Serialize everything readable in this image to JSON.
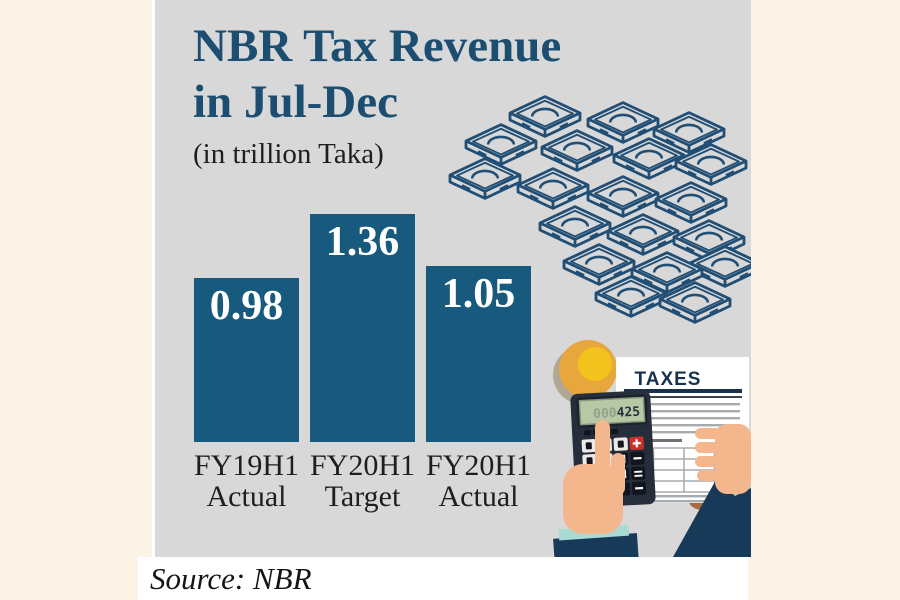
{
  "chart_data": {
    "type": "bar",
    "title": "NBR Tax Revenue in Jul-Dec",
    "title_lines": [
      "NBR Tax Revenue",
      "in Jul-Dec"
    ],
    "subtitle": "(in trillion Taka)",
    "unit": "trillion Taka",
    "categories": [
      "FY19H1 Actual",
      "FY20H1 Target",
      "FY20H1 Actual"
    ],
    "category_lines": [
      [
        "FY19H1",
        "Actual"
      ],
      [
        "FY20H1",
        "Target"
      ],
      [
        "FY20H1",
        "Actual"
      ]
    ],
    "values": [
      0.98,
      1.36,
      1.05
    ],
    "value_labels": [
      "0.98",
      "1.36",
      "1.05"
    ],
    "ylim": [
      0,
      1.45
    ],
    "grid": false,
    "legend": "none",
    "bar_color": "#175A7D",
    "value_label_position": "inside-top",
    "value_label_color": "#FFFFFF"
  },
  "source_line": "Source: NBR",
  "illustration": {
    "money_stack_icon": "banknote-bundles-heap",
    "coin_icon": "gold-coin",
    "calculator_icon": "calculator",
    "calculator_display": "425",
    "paper_title": "TAXES",
    "hands_icon": "hands-with-calculator-and-tax-form"
  },
  "colors": {
    "page_cream": "#FCF3E7",
    "panel_gray": "#D8D8D8",
    "bottom_strip": "#FFFFFF",
    "title_navy": "#1B4E70",
    "bar_teal": "#175A7D",
    "money_outline": "#214E74",
    "label_dark": "#1F1E1C",
    "skin": "#F3B68D",
    "sleeve_navy": "#163A58",
    "cuff_teal": "#A9DAD3",
    "coin_orange": "#E8A73C",
    "coin_yellow": "#F2C31D",
    "key_red": "#C93327",
    "lcd_green": "#B7C8A4"
  }
}
